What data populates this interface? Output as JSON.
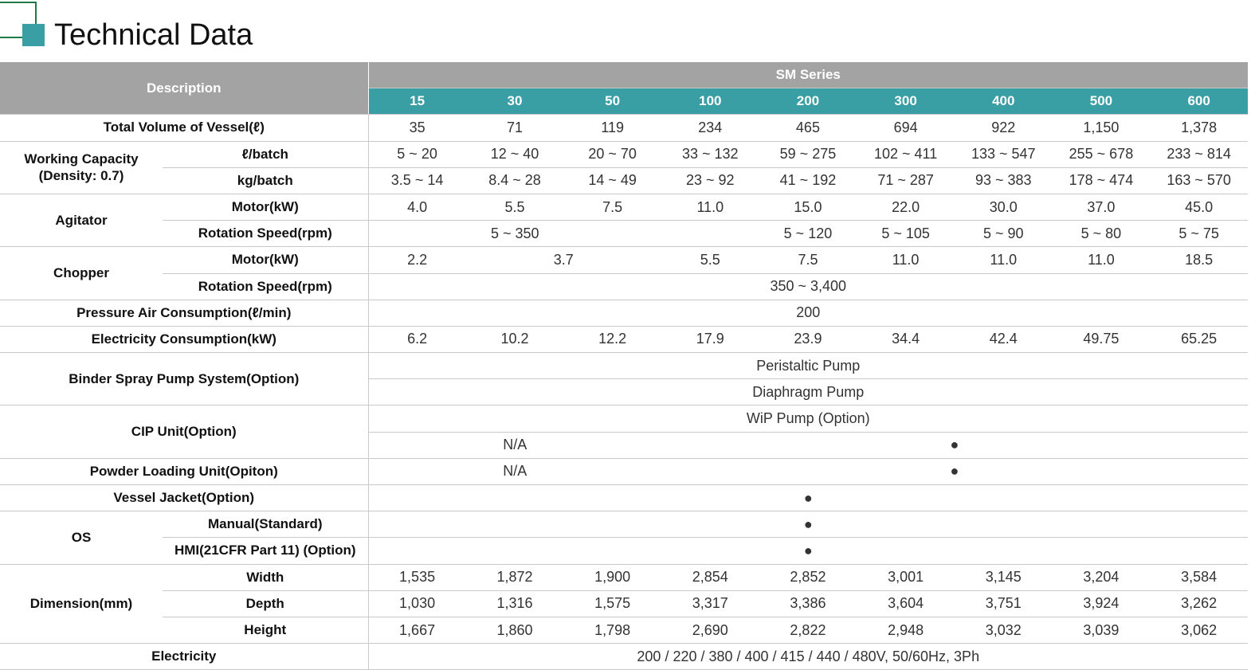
{
  "header": {
    "title": "Technical Data"
  },
  "table": {
    "description": "Description",
    "series": "SM Series",
    "models": [
      "15",
      "30",
      "50",
      "100",
      "200",
      "300",
      "400",
      "500",
      "600"
    ],
    "rows": [
      {
        "label": "Total Volume of Vessel(ℓ)",
        "values": [
          "35",
          "71",
          "119",
          "234",
          "465",
          "694",
          "922",
          "1,150",
          "1,378"
        ]
      },
      {
        "label": [
          "Working Capacity",
          "(Density: 0.7)"
        ],
        "items": [
          {
            "label": "ℓ/batch",
            "values": [
              "5 ~ 20",
              "12 ~ 40",
              "20 ~ 70",
              "33 ~ 132",
              "59 ~ 275",
              "102 ~ 411",
              "133 ~ 547",
              "255 ~ 678",
              "233 ~ 814"
            ]
          },
          {
            "label": "kg/batch",
            "values": [
              "3.5 ~ 14",
              "8.4 ~ 28",
              "14 ~ 49",
              "23 ~ 92",
              "41 ~ 192",
              "71 ~ 287",
              "93 ~ 383",
              "178 ~ 474",
              "163 ~ 570"
            ]
          }
        ]
      },
      {
        "label": "Agitator",
        "items": [
          {
            "label": "Motor(kW)",
            "values": [
              "4.0",
              "5.5",
              "7.5",
              "11.0",
              "15.0",
              "22.0",
              "30.0",
              "37.0",
              "45.0"
            ]
          },
          {
            "label": "Rotation Speed(rpm)",
            "values": [
              "5 ~ 350",
              "5 ~ 120",
              "5 ~ 105",
              "5 ~ 90",
              "5 ~ 80",
              "5 ~ 75"
            ]
          }
        ]
      },
      {
        "label": "Chopper",
        "items": [
          {
            "label": "Motor(kW)",
            "values": [
              "2.2",
              "3.7",
              "5.5",
              "7.5",
              "11.0",
              "11.0",
              "11.0",
              "18.5"
            ]
          },
          {
            "label": "Rotation Speed(rpm)",
            "values": [
              "350 ~ 3,400"
            ]
          }
        ]
      },
      {
        "label": "Pressure Air Consumption(ℓ/min)",
        "values": [
          "200"
        ]
      },
      {
        "label": "Electricity Consumption(kW)",
        "values": [
          "6.2",
          "10.2",
          "12.2",
          "17.9",
          "23.9",
          "34.4",
          "42.4",
          "49.75",
          "65.25"
        ]
      },
      {
        "label": "Binder Spray Pump System(Option)",
        "lines": [
          [
            "Peristaltic Pump"
          ],
          [
            "Diaphragm Pump"
          ]
        ]
      },
      {
        "label": "CIP Unit(Option)",
        "lines": [
          [
            "WiP Pump (Option)"
          ],
          [
            "N/A",
            "●"
          ]
        ]
      },
      {
        "label": "Powder Loading Unit(Opiton)",
        "values": [
          "N/A",
          "●"
        ]
      },
      {
        "label": "Vessel Jacket(Option)",
        "values": [
          "●"
        ]
      },
      {
        "label": "OS",
        "items": [
          {
            "label": "Manual(Standard)",
            "values": [
              "●"
            ]
          },
          {
            "label": "HMI(21CFR Part 11) (Option)",
            "values": [
              "●"
            ]
          }
        ]
      },
      {
        "label": "Dimension(mm)",
        "items": [
          {
            "label": "Width",
            "values": [
              "1,535",
              "1,872",
              "1,900",
              "2,854",
              "2,852",
              "3,001",
              "3,145",
              "3,204",
              "3,584"
            ]
          },
          {
            "label": "Depth",
            "values": [
              "1,030",
              "1,316",
              "1,575",
              "3,317",
              "3,386",
              "3,604",
              "3,751",
              "3,924",
              "3,262"
            ]
          },
          {
            "label": "Height",
            "values": [
              "1,667",
              "1,860",
              "1,798",
              "2,690",
              "2,822",
              "2,948",
              "3,032",
              "3,039",
              "3,062"
            ]
          }
        ]
      },
      {
        "label": "Electricity",
        "values": [
          "200 / 220 / 380 / 400 / 415 / 440 / 480V, 50/60Hz, 3Ph"
        ]
      }
    ]
  }
}
